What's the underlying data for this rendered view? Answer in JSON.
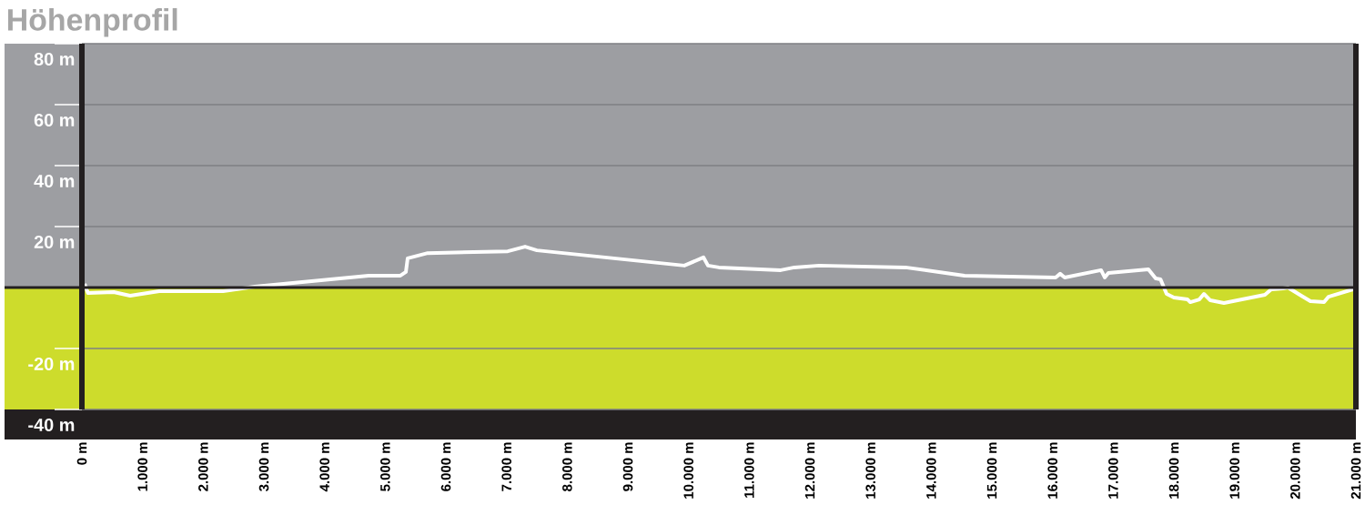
{
  "chart_data": {
    "type": "line",
    "title": "Höhenprofil",
    "color": "#ffffff",
    "grid": "y",
    "x": [
      45,
      100,
      525,
      795,
      1275,
      2325,
      2850,
      4725,
      5250,
      5340,
      5370,
      5700,
      7020,
      7305,
      7500,
      9930,
      10245,
      10320,
      10500,
      11520,
      11745,
      12150,
      13575,
      14550,
      16050,
      16125,
      16200,
      16800,
      16860,
      16920,
      17580,
      17700,
      17780,
      17880,
      18000,
      18225,
      18270,
      18420,
      18495,
      18600,
      18825,
      19500,
      19605,
      19800,
      19880,
      20100,
      20250,
      20475,
      20550,
      21000
    ],
    "values": [
      1.2,
      -1.8,
      -1.5,
      -2.7,
      -1.2,
      -1.2,
      0.3,
      3.9,
      3.9,
      5.1,
      9.6,
      11.3,
      11.9,
      13.4,
      12.2,
      7.2,
      9.9,
      7.2,
      6.6,
      5.7,
      6.6,
      7.2,
      6.6,
      3.9,
      3.3,
      4.5,
      3.3,
      5.7,
      3.3,
      4.8,
      6.0,
      3.0,
      2.7,
      -2.1,
      -3.3,
      -3.9,
      -4.8,
      -3.9,
      -2.1,
      -4.2,
      -5.1,
      -2.4,
      -0.6,
      -0.3,
      0.0,
      -2.7,
      -4.5,
      -4.8,
      -3.0,
      -0.3
    ],
    "xlim": [
      0,
      21000
    ],
    "xticks": [
      {
        "value": 0,
        "label": "0 m"
      },
      {
        "value": 1000,
        "label": "1.000 m"
      },
      {
        "value": 2000,
        "label": "2.000 m"
      },
      {
        "value": 3000,
        "label": "3.000 m"
      },
      {
        "value": 4000,
        "label": "4.000 m"
      },
      {
        "value": 5000,
        "label": "5.000 m"
      },
      {
        "value": 6000,
        "label": "6.000 m"
      },
      {
        "value": 7000,
        "label": "7.000 m"
      },
      {
        "value": 8000,
        "label": "8.000 m"
      },
      {
        "value": 9000,
        "label": "9.000 m"
      },
      {
        "value": 10000,
        "label": "10.000 m"
      },
      {
        "value": 11000,
        "label": "11.000 m"
      },
      {
        "value": 12000,
        "label": "12.000 m"
      },
      {
        "value": 13000,
        "label": "13.000 m"
      },
      {
        "value": 14000,
        "label": "14.000 m"
      },
      {
        "value": 15000,
        "label": "15.000 m"
      },
      {
        "value": 16000,
        "label": "16.000 m"
      },
      {
        "value": 17000,
        "label": "17.000 m"
      },
      {
        "value": 18000,
        "label": "18.000 m"
      },
      {
        "value": 19000,
        "label": "19.000 m"
      },
      {
        "value": 20000,
        "label": "20.000 m"
      },
      {
        "value": 21000,
        "label": "21.000 m"
      }
    ],
    "ylim": [
      -40,
      80
    ],
    "yticks": [
      {
        "value": 80,
        "label": "80 m"
      },
      {
        "value": 60,
        "label": "60 m"
      },
      {
        "value": 40,
        "label": "40 m"
      },
      {
        "value": 20,
        "label": "20 m"
      },
      {
        "value": -20,
        "label": "-20 m"
      },
      {
        "value": -40,
        "label": "-40 m"
      }
    ],
    "bands": [
      {
        "axis": "y",
        "from": 0,
        "to": 80,
        "color": "#9d9ea2"
      },
      {
        "axis": "y",
        "from": -40,
        "to": 0,
        "color": "#cddc2c"
      }
    ],
    "ref_lines": [
      {
        "axis": "y",
        "value": 0,
        "color": "#231f20"
      }
    ]
  }
}
